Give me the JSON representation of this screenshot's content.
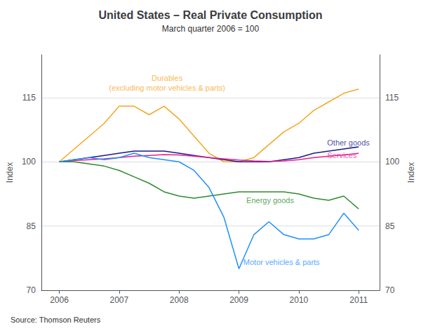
{
  "chart_data": {
    "type": "line",
    "title": "United States – Real Private Consumption",
    "subtitle": "March quarter 2006 = 100",
    "ylabel": "Index",
    "y2label": "Index",
    "source": "Source: Thomson Reuters",
    "x": [
      2006.0,
      2006.25,
      2006.5,
      2006.75,
      2007.0,
      2007.25,
      2007.5,
      2007.75,
      2008.0,
      2008.25,
      2008.5,
      2008.75,
      2009.0,
      2009.25,
      2009.5,
      2009.75,
      2010.0,
      2010.25,
      2010.5,
      2010.75,
      2011.0
    ],
    "xlim": [
      2005.7,
      2011.35
    ],
    "xticks": [
      2006,
      2007,
      2008,
      2009,
      2010,
      2011
    ],
    "ylim": [
      70,
      125
    ],
    "yticks": [
      70,
      85,
      100,
      115
    ],
    "y2lim": [
      70,
      125
    ],
    "y2ticks": [
      70,
      85,
      100,
      115
    ],
    "grid": "y",
    "series": [
      {
        "color": "#f5a623",
        "values": [
          100,
          103,
          106,
          109,
          113,
          113,
          111,
          113,
          110,
          106,
          102,
          100,
          100,
          101,
          104,
          107,
          109,
          112,
          114,
          116,
          117
        ]
      },
      {
        "color": "#1a1a8c",
        "values": [
          100,
          100.5,
          101,
          101.5,
          102,
          102.5,
          102.5,
          102.5,
          102.0,
          101.5,
          101.0,
          100.5,
          100.0,
          100.0,
          100.0,
          100.5,
          101.0,
          102.0,
          102.5,
          103.0,
          103.5
        ]
      },
      {
        "color": "#e91e8c",
        "values": [
          100,
          100.3,
          100.5,
          100.7,
          101.0,
          101.3,
          101.5,
          101.7,
          101.6,
          101.3,
          101.0,
          100.7,
          100.4,
          100.2,
          100.1,
          100.2,
          100.5,
          101.0,
          101.3,
          101.6,
          102.0
        ]
      },
      {
        "color": "#2d8b2d",
        "values": [
          100,
          100,
          99.5,
          99,
          98,
          96.5,
          95,
          93,
          92,
          91.5,
          92,
          92.5,
          93,
          93,
          93,
          93,
          92.5,
          91.5,
          91,
          92,
          89
        ]
      },
      {
        "color": "#1e90ff",
        "values": [
          100,
          100.5,
          101,
          100.5,
          101,
          102,
          101,
          100.5,
          100,
          98,
          94,
          87,
          75,
          83,
          86,
          83,
          82,
          82,
          83,
          88,
          84
        ]
      }
    ],
    "annotations": [
      {
        "x": 2007.8,
        "y": 121,
        "text": "Durables\n(excluding motor vehicles & parts)"
      },
      {
        "x": 2010.45,
        "y": 104.5,
        "text": "Other goods"
      },
      {
        "x": 2010.45,
        "y": 101.5,
        "text": "Services"
      },
      {
        "x": 2009.1,
        "y": 91.0,
        "text": "Energy goods"
      },
      {
        "x": 2009.05,
        "y": 76.5,
        "text": "Motor vehicles & parts"
      }
    ]
  }
}
